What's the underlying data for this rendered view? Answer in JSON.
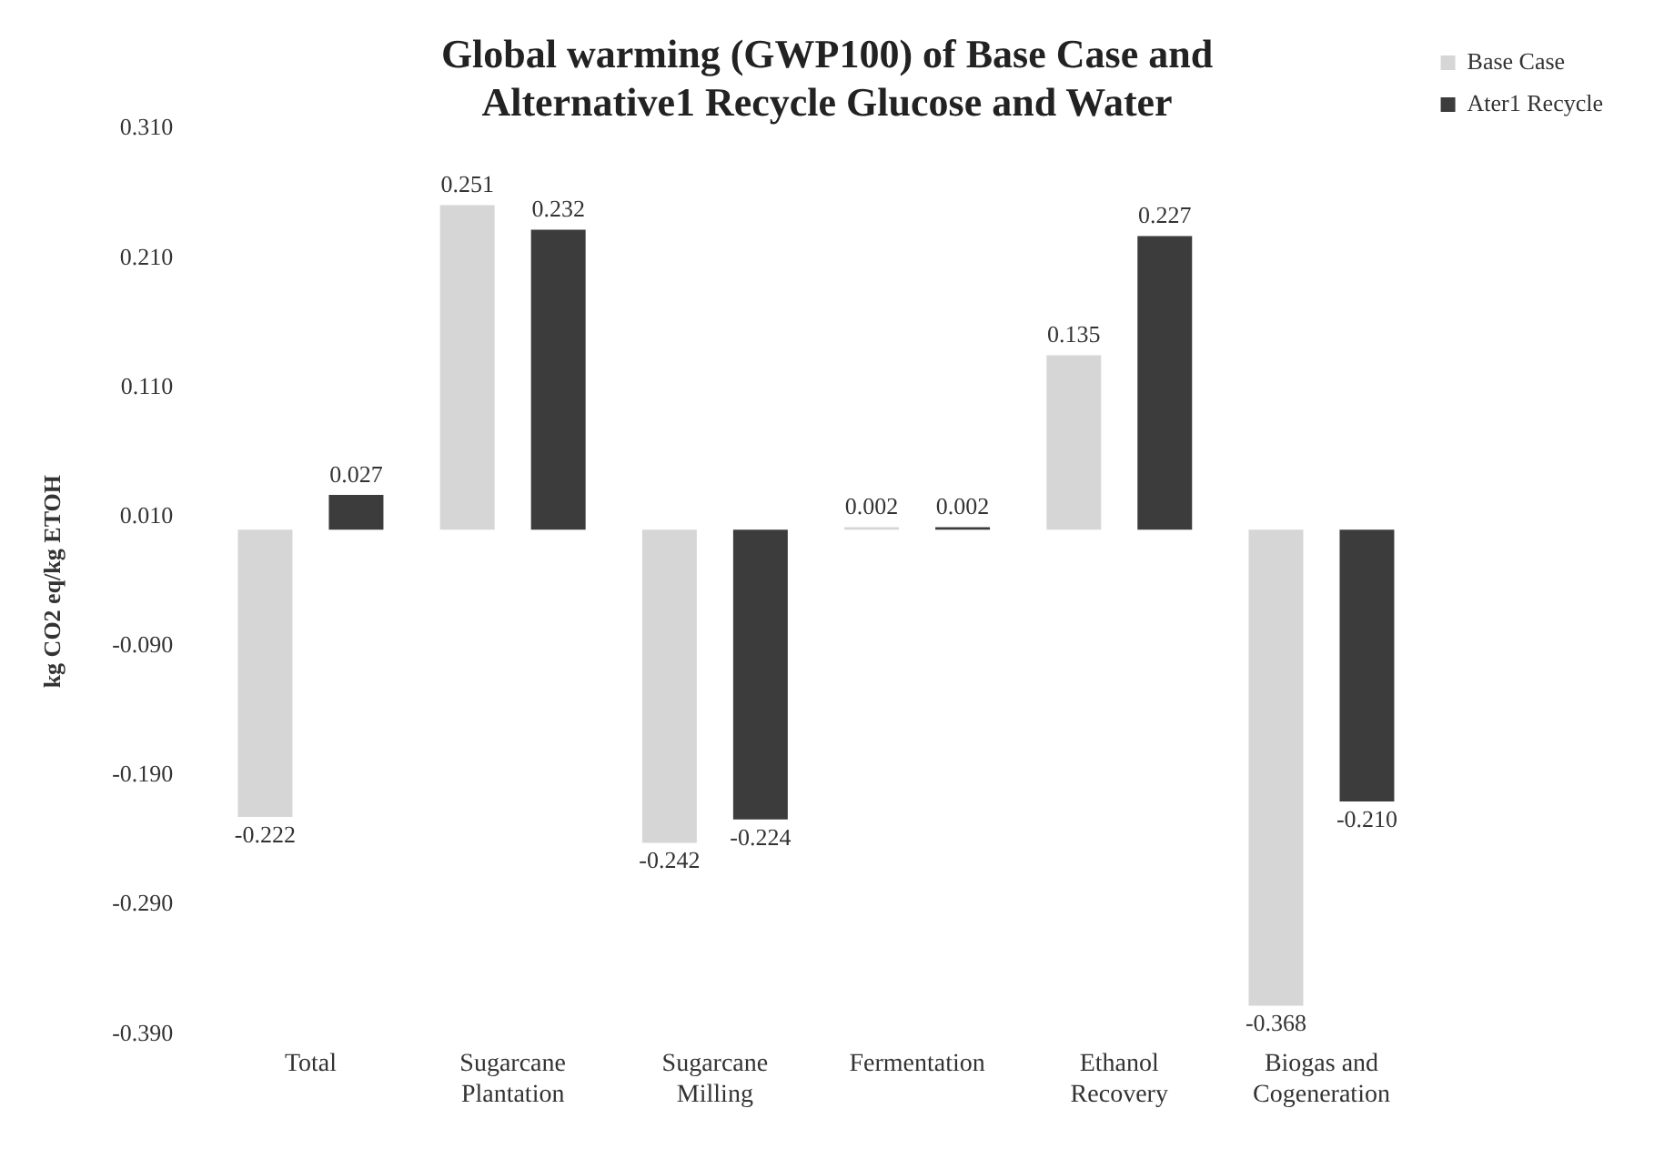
{
  "chart_data": {
    "type": "bar",
    "title": "Global warming (GWP100) of Base Case and Alternative1 Recycle Glucose and Water",
    "ylabel": "kg CO2 eq/kg ETOH",
    "categories": [
      "Total",
      "Sugarcane Plantation",
      "Sugarcane Milling",
      "Fermentation",
      "Ethanol Recovery",
      "Biogas and Cogeneration"
    ],
    "series": [
      {
        "name": "Base Case",
        "color": "#d6d6d6",
        "values": [
          -0.222,
          0.251,
          -0.242,
          0.002,
          0.135,
          -0.368
        ],
        "value_labels": [
          "-0.222",
          "0.251",
          "-0.242",
          "0.002",
          "0.135",
          "-0.368"
        ]
      },
      {
        "name": "Ater1 Recycle",
        "color": "#3c3c3c",
        "values": [
          0.027,
          0.232,
          -0.224,
          0.002,
          0.227,
          -0.21
        ],
        "value_labels": [
          "0.027",
          "0.232",
          "-0.224",
          "0.002",
          "0.227",
          "-0.210"
        ]
      }
    ],
    "ylim": [
      -0.39,
      0.31
    ],
    "yticks": [
      {
        "value": -0.39,
        "label": "-0.390"
      },
      {
        "value": -0.29,
        "label": "-0.290"
      },
      {
        "value": -0.19,
        "label": "-0.190"
      },
      {
        "value": -0.09,
        "label": "-0.090"
      },
      {
        "value": 0.01,
        "label": "0.010"
      },
      {
        "value": 0.11,
        "label": "0.110"
      },
      {
        "value": 0.21,
        "label": "0.210"
      },
      {
        "value": 0.31,
        "label": "0.310"
      }
    ],
    "grid": false,
    "legend": "top right"
  }
}
